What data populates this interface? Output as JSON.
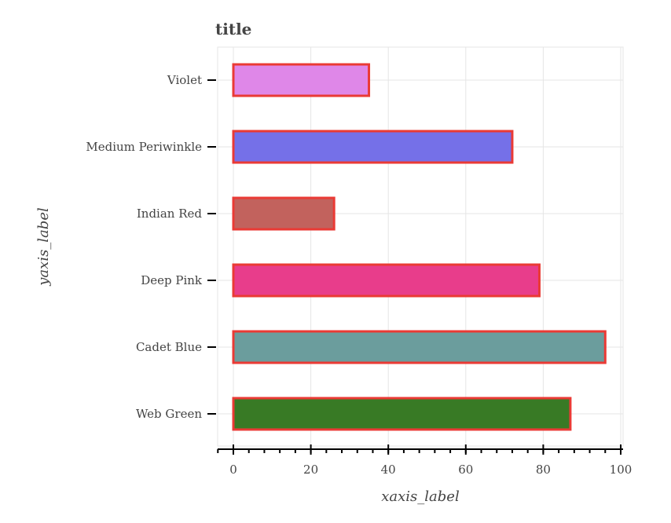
{
  "chart_data": {
    "type": "bar",
    "orientation": "horizontal",
    "title": "title",
    "xlabel": "xaxis_label",
    "ylabel": "yaxis_label",
    "xlim": [
      -4,
      100
    ],
    "x_ticks": [
      0,
      20,
      40,
      60,
      80,
      100
    ],
    "x_tick_labels": [
      "0",
      "20",
      "40",
      "60",
      "80",
      "100"
    ],
    "grid": true,
    "categories": [
      "Violet",
      "Medium Periwinkle",
      "Indian Red",
      "Deep Pink",
      "Cadet Blue",
      "Web Green"
    ],
    "values": [
      35,
      72,
      26,
      79,
      96,
      87
    ],
    "bar_colors": [
      "#df87e8",
      "#7570e8",
      "#c2625d",
      "#e83d8b",
      "#6b9d9d",
      "#387a25"
    ],
    "bar_outline_color": "#ea3a35"
  }
}
